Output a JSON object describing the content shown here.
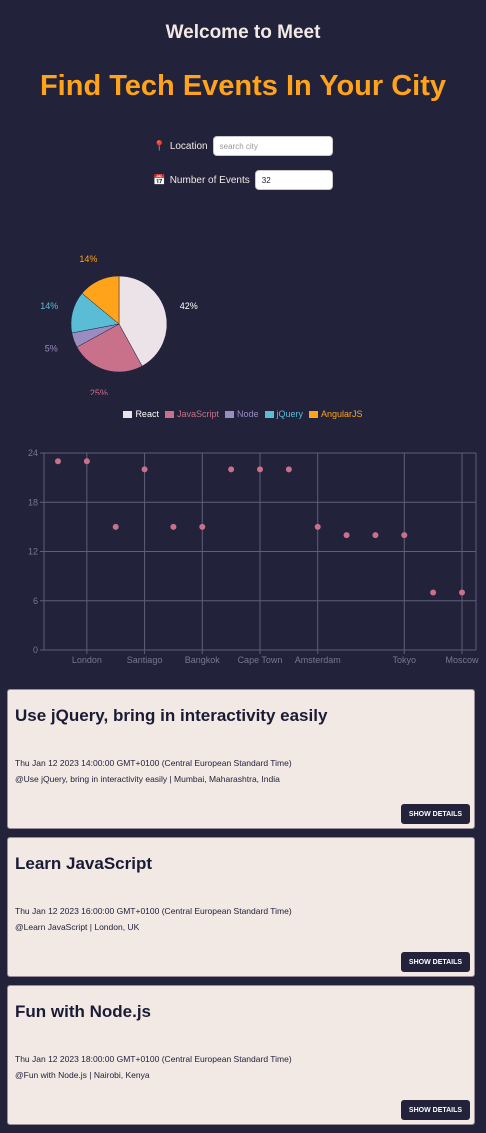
{
  "header": {
    "app_title": "Welcome to Meet",
    "hero_title": "Find Tech Events In Your City"
  },
  "search": {
    "location_icon": "pin-icon",
    "location_label": "Location",
    "location_placeholder": "search city",
    "location_value": "",
    "number_icon": "calendar-icon",
    "number_label": "Number of Events",
    "number_value": "32"
  },
  "chart_data": [
    {
      "type": "pie",
      "categories": [
        "React",
        "JavaScript",
        "Node",
        "jQuery",
        "AngularJS"
      ],
      "values": [
        42,
        25,
        5,
        14,
        14
      ],
      "labels": [
        "42%",
        "25%",
        "5%",
        "14%",
        "14%"
      ],
      "colors": [
        "#ece3e8",
        "#c9708a",
        "#9a8cc0",
        "#5bbcd6",
        "#ffa31a"
      ],
      "legend_position": "bottom"
    },
    {
      "type": "scatter",
      "x_tick_labels": [
        "London",
        "Santiago",
        "Bangkok",
        "Cape Town",
        "Amsterdam",
        "Tokyo",
        "Moscow"
      ],
      "y_ticks": [
        0,
        6,
        12,
        18,
        24
      ],
      "ylim": [
        0,
        24
      ],
      "points": [
        {
          "x": 0,
          "y": 23
        },
        {
          "x": 1,
          "y": 23
        },
        {
          "x": 2,
          "y": 15
        },
        {
          "x": 3,
          "y": 22
        },
        {
          "x": 4,
          "y": 15
        },
        {
          "x": 5,
          "y": 15
        },
        {
          "x": 6,
          "y": 22
        },
        {
          "x": 7,
          "y": 22
        },
        {
          "x": 8,
          "y": 22
        },
        {
          "x": 9,
          "y": 15
        },
        {
          "x": 10,
          "y": 14
        },
        {
          "x": 11,
          "y": 14
        },
        {
          "x": 12,
          "y": 14
        },
        {
          "x": 13,
          "y": 7
        },
        {
          "x": 14,
          "y": 7
        }
      ],
      "point_color": "#c9708a",
      "grid": true
    }
  ],
  "events": [
    {
      "title": "Use jQuery, bring in interactivity easily",
      "date": "Thu Jan 12 2023 14:00:00 GMT+0100 (Central European Standard Time)",
      "location": "@Use jQuery, bring in interactivity easily | Mumbai, Maharashtra, India",
      "button": "SHOW DETAILS"
    },
    {
      "title": "Learn JavaScript",
      "date": "Thu Jan 12 2023 16:00:00 GMT+0100 (Central European Standard Time)",
      "location": "@Learn JavaScript | London, UK",
      "button": "SHOW DETAILS"
    },
    {
      "title": "Fun with Node.js",
      "date": "Thu Jan 12 2023 18:00:00 GMT+0100 (Central European Standard Time)",
      "location": "@Fun with Node.js | Nairobi, Kenya",
      "button": "SHOW DETAILS"
    }
  ]
}
